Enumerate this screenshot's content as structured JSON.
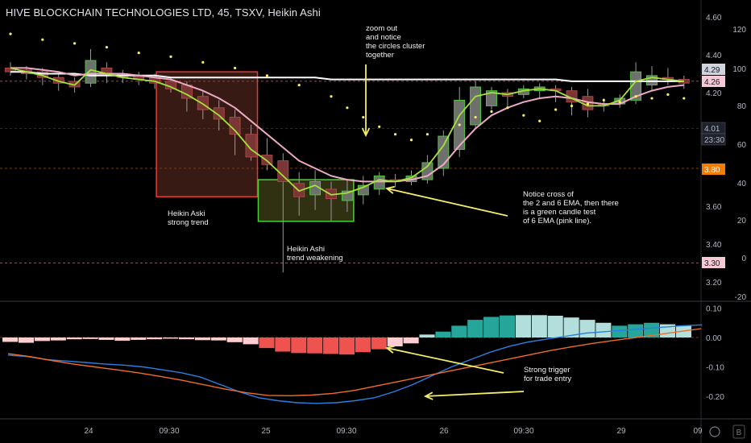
{
  "header": {
    "title": "HIVE BLOCKCHAIN TECHNOLOGIES LTD, 45, TSXV, Heikin Ashi"
  },
  "colors": {
    "background": "#000000",
    "bull_candle": "#8a8f8a",
    "bear_candle": "#b24a4a",
    "ema_2": "#a4e23a",
    "ema_6": "#ecaac4",
    "long_ma": "#ffffff",
    "dots": "#f5ef6a",
    "annotation_arrow": "#f3ed6a",
    "macd_line": "#2a7fe0",
    "signal_line": "#ef6c2c",
    "hist_pos_strong": "#26a69a",
    "hist_pos_weak": "#b2dfdb",
    "hist_neg_strong": "#ef5350",
    "hist_neg_weak": "#ffcdd2",
    "box_red": "#e53935",
    "box_green": "#4cd137"
  },
  "price_axis": {
    "labels": [
      "4.60",
      "4.40",
      "4.20",
      "4.01",
      "3.80",
      "3.60",
      "3.40",
      "3.30",
      "3.20"
    ],
    "min": 3.12,
    "max": 4.68
  },
  "oscillator_axis": {
    "labels": [
      "120",
      "100",
      "80",
      "60",
      "40",
      "20",
      "0",
      "-20"
    ]
  },
  "macd_axis": {
    "labels": [
      "0.10",
      "0.00",
      "-0.10",
      "-0.20"
    ],
    "min": -0.26,
    "max": 0.12
  },
  "time_axis": {
    "labels": [
      "24",
      "09:30",
      "25",
      "09:30",
      "26",
      "09:30",
      "29",
      "09"
    ]
  },
  "price_tags": [
    {
      "label": "4.29",
      "value": 4.29,
      "style": "gray"
    },
    {
      "label": "4.26",
      "value": 4.26,
      "style": "pink"
    },
    {
      "label": "4.01",
      "value": 4.01,
      "style": "dark"
    },
    {
      "label": "23:30",
      "value": 3.955,
      "style": "dark"
    },
    {
      "label": "3.80",
      "value": 3.8,
      "style": "orange"
    },
    {
      "label": "3.30",
      "value": 3.3,
      "style": "pink"
    }
  ],
  "annotations": [
    {
      "id": "zoom",
      "lines": [
        "zoom out",
        "and notice",
        "the circles cluster",
        "together"
      ]
    },
    {
      "id": "strong",
      "lines": [
        "Heikin Aski",
        "strong trend"
      ]
    },
    {
      "id": "weak",
      "lines": [
        "Heikin Ashi",
        "trend weakening"
      ]
    },
    {
      "id": "cross",
      "lines": [
        "Notice cross of",
        "the 2 and 6 EMA, then there",
        "is a green candle test",
        "of 6 EMA (pink line)."
      ]
    },
    {
      "id": "trigger",
      "lines": [
        "Strong trigger",
        "for trade entry"
      ]
    }
  ],
  "footer_icons": [
    "settings-icon",
    "B"
  ],
  "chart_data": [
    {
      "type": "candlestick",
      "name": "HIVE BLOCKCHAIN TECHNOLOGIES LTD, 45, TSXV, Heikin Ashi",
      "candles": [
        {
          "o": 4.33,
          "c": 4.31,
          "h": 4.36,
          "l": 4.29
        },
        {
          "o": 4.32,
          "c": 4.3,
          "h": 4.34,
          "l": 4.27
        },
        {
          "o": 4.31,
          "c": 4.28,
          "h": 4.33,
          "l": 4.24
        },
        {
          "o": 4.28,
          "c": 4.25,
          "h": 4.3,
          "l": 4.21
        },
        {
          "o": 4.26,
          "c": 4.23,
          "h": 4.28,
          "l": 4.2
        },
        {
          "o": 4.25,
          "c": 4.37,
          "h": 4.43,
          "l": 4.23
        },
        {
          "o": 4.33,
          "c": 4.29,
          "h": 4.36,
          "l": 4.25
        },
        {
          "o": 4.3,
          "c": 4.28,
          "h": 4.32,
          "l": 4.25
        },
        {
          "o": 4.29,
          "c": 4.27,
          "h": 4.31,
          "l": 4.24
        },
        {
          "o": 4.28,
          "c": 4.25,
          "h": 4.3,
          "l": 4.22
        },
        {
          "o": 4.26,
          "c": 4.22,
          "h": 4.28,
          "l": 4.2
        },
        {
          "o": 4.24,
          "c": 4.17,
          "h": 4.26,
          "l": 4.1
        },
        {
          "o": 4.18,
          "c": 4.11,
          "h": 4.21,
          "l": 4.06
        },
        {
          "o": 4.12,
          "c": 4.06,
          "h": 4.16,
          "l": 4.0
        },
        {
          "o": 4.07,
          "c": 3.98,
          "h": 4.11,
          "l": 3.87
        },
        {
          "o": 3.98,
          "c": 3.86,
          "h": 4.03,
          "l": 3.84
        },
        {
          "o": 3.87,
          "c": 3.82,
          "h": 3.96,
          "l": 3.79
        },
        {
          "o": 3.84,
          "c": 3.73,
          "h": 3.88,
          "l": 3.25
        },
        {
          "o": 3.72,
          "c": 3.65,
          "h": 3.78,
          "l": 3.55
        },
        {
          "o": 3.66,
          "c": 3.73,
          "h": 3.79,
          "l": 3.58
        },
        {
          "o": 3.69,
          "c": 3.64,
          "h": 3.73,
          "l": 3.52
        },
        {
          "o": 3.63,
          "c": 3.68,
          "h": 3.74,
          "l": 3.57
        },
        {
          "o": 3.66,
          "c": 3.71,
          "h": 3.76,
          "l": 3.61
        },
        {
          "o": 3.69,
          "c": 3.76,
          "h": 3.78,
          "l": 3.66
        },
        {
          "o": 3.74,
          "c": 3.73,
          "h": 3.77,
          "l": 3.7
        },
        {
          "o": 3.73,
          "c": 3.76,
          "h": 3.79,
          "l": 3.71
        },
        {
          "o": 3.74,
          "c": 3.83,
          "h": 3.87,
          "l": 3.72
        },
        {
          "o": 3.8,
          "c": 3.97,
          "h": 4.0,
          "l": 3.76
        },
        {
          "o": 3.9,
          "c": 4.16,
          "h": 4.23,
          "l": 3.86
        },
        {
          "o": 4.03,
          "c": 4.23,
          "h": 4.26,
          "l": 4.01
        },
        {
          "o": 4.13,
          "c": 4.21,
          "h": 4.23,
          "l": 4.11
        },
        {
          "o": 4.2,
          "c": 4.18,
          "h": 4.22,
          "l": 4.12
        },
        {
          "o": 4.19,
          "c": 4.22,
          "h": 4.24,
          "l": 4.17
        },
        {
          "o": 4.21,
          "c": 4.23,
          "h": 4.25,
          "l": 4.17
        },
        {
          "o": 4.22,
          "c": 4.21,
          "h": 4.24,
          "l": 4.15
        },
        {
          "o": 4.21,
          "c": 4.15,
          "h": 4.23,
          "l": 4.08
        },
        {
          "o": 4.18,
          "c": 4.11,
          "h": 4.22,
          "l": 4.07
        },
        {
          "o": 4.14,
          "c": 4.13,
          "h": 4.17,
          "l": 4.1
        },
        {
          "o": 4.14,
          "c": 4.17,
          "h": 4.19,
          "l": 4.12
        },
        {
          "o": 4.16,
          "c": 4.31,
          "h": 4.36,
          "l": 4.14
        },
        {
          "o": 4.24,
          "c": 4.29,
          "h": 4.34,
          "l": 4.21
        },
        {
          "o": 4.28,
          "c": 4.27,
          "h": 4.33,
          "l": 4.24
        },
        {
          "o": 4.27,
          "c": 4.25,
          "h": 4.29,
          "l": 4.22
        }
      ],
      "ema_2": [
        4.33,
        4.31,
        4.29,
        4.26,
        4.24,
        4.32,
        4.3,
        4.28,
        4.27,
        4.26,
        4.23,
        4.19,
        4.14,
        4.08,
        4.0,
        3.9,
        3.84,
        3.76,
        3.68,
        3.71,
        3.66,
        3.67,
        3.7,
        3.74,
        3.73,
        3.75,
        3.81,
        3.92,
        4.08,
        4.18,
        4.2,
        4.19,
        4.21,
        4.22,
        4.21,
        4.17,
        4.13,
        4.13,
        4.16,
        4.26,
        4.28,
        4.27,
        4.26
      ],
      "ema_6": [
        4.33,
        4.33,
        4.32,
        4.31,
        4.29,
        4.3,
        4.3,
        4.3,
        4.29,
        4.28,
        4.27,
        4.24,
        4.21,
        4.17,
        4.12,
        4.05,
        3.98,
        3.91,
        3.84,
        3.8,
        3.76,
        3.74,
        3.73,
        3.73,
        3.73,
        3.74,
        3.76,
        3.82,
        3.92,
        4.01,
        4.08,
        4.12,
        4.15,
        4.17,
        4.18,
        4.17,
        4.15,
        4.14,
        4.14,
        4.18,
        4.21,
        4.23,
        4.24
      ],
      "long_ma": [
        4.31,
        4.31,
        4.3,
        4.3,
        4.3,
        4.29,
        4.29,
        4.29,
        4.29,
        4.29,
        4.28,
        4.28,
        4.28,
        4.28,
        4.28,
        4.28,
        4.28,
        4.28,
        4.28,
        4.28,
        4.27,
        4.27,
        4.27,
        4.27,
        4.27,
        4.27,
        4.27,
        4.27,
        4.27,
        4.27,
        4.27,
        4.27,
        4.27,
        4.27,
        4.27,
        4.26,
        4.26,
        4.26,
        4.26,
        4.26,
        4.26,
        4.26,
        4.26
      ],
      "dots": [
        {
          "i": 0,
          "v": 4.51
        },
        {
          "i": 2,
          "v": 4.48
        },
        {
          "i": 4,
          "v": 4.46
        },
        {
          "i": 6,
          "v": 4.44
        },
        {
          "i": 8,
          "v": 4.41
        },
        {
          "i": 10,
          "v": 4.39
        },
        {
          "i": 12,
          "v": 4.36
        },
        {
          "i": 14,
          "v": 4.33
        },
        {
          "i": 16,
          "v": 4.29
        },
        {
          "i": 18,
          "v": 4.24
        },
        {
          "i": 20,
          "v": 4.18
        },
        {
          "i": 21,
          "v": 4.12
        },
        {
          "i": 22,
          "v": 4.07
        },
        {
          "i": 23,
          "v": 4.02
        },
        {
          "i": 24,
          "v": 3.98
        },
        {
          "i": 25,
          "v": 3.95
        },
        {
          "i": 26,
          "v": 3.98
        },
        {
          "i": 28,
          "v": 4.03
        },
        {
          "i": 29,
          "v": 4.07
        },
        {
          "i": 30,
          "v": 4.1
        },
        {
          "i": 31,
          "v": 4.12
        },
        {
          "i": 32,
          "v": 4.08
        },
        {
          "i": 33,
          "v": 4.05
        },
        {
          "i": 34,
          "v": 4.11
        },
        {
          "i": 35,
          "v": 4.13
        },
        {
          "i": 36,
          "v": 4.14
        },
        {
          "i": 37,
          "v": 4.16
        },
        {
          "i": 38,
          "v": 4.15
        },
        {
          "i": 39,
          "v": 4.18
        },
        {
          "i": 40,
          "v": 4.17
        },
        {
          "i": 41,
          "v": 4.19
        },
        {
          "i": 42,
          "v": 4.17
        }
      ]
    },
    {
      "type": "bar",
      "name": "MACD histogram",
      "values": [
        -0.015,
        -0.018,
        -0.012,
        -0.01,
        -0.006,
        -0.005,
        -0.008,
        -0.011,
        -0.008,
        -0.006,
        -0.004,
        -0.006,
        -0.009,
        -0.01,
        -0.016,
        -0.023,
        -0.036,
        -0.048,
        -0.053,
        -0.054,
        -0.056,
        -0.058,
        -0.05,
        -0.04,
        -0.03,
        -0.02,
        0.01,
        0.02,
        0.04,
        0.06,
        0.07,
        0.075,
        0.076,
        0.076,
        0.074,
        0.068,
        0.06,
        0.05,
        0.04,
        0.045,
        0.05,
        0.045,
        0.04
      ],
      "macd_line": [
        -0.06,
        -0.065,
        -0.075,
        -0.08,
        -0.085,
        -0.09,
        -0.094,
        -0.1,
        -0.11,
        -0.12,
        -0.135,
        -0.16,
        -0.185,
        -0.205,
        -0.215,
        -0.222,
        -0.224,
        -0.222,
        -0.215,
        -0.205,
        -0.185,
        -0.16,
        -0.13,
        -0.1,
        -0.075,
        -0.05,
        -0.03,
        -0.015,
        -0.005,
        0.005,
        0.015,
        0.02,
        0.025,
        0.03,
        0.035,
        0.04,
        0.043
      ],
      "signal_line": [
        -0.055,
        -0.065,
        -0.078,
        -0.09,
        -0.1,
        -0.11,
        -0.12,
        -0.132,
        -0.145,
        -0.16,
        -0.175,
        -0.188,
        -0.197,
        -0.198,
        -0.196,
        -0.19,
        -0.18,
        -0.165,
        -0.15,
        -0.135,
        -0.12,
        -0.105,
        -0.09,
        -0.075,
        -0.06,
        -0.045,
        -0.032,
        -0.02,
        -0.01,
        0.0,
        0.01,
        0.02,
        0.03
      ],
      "ylim": [
        -0.26,
        0.12
      ]
    }
  ]
}
